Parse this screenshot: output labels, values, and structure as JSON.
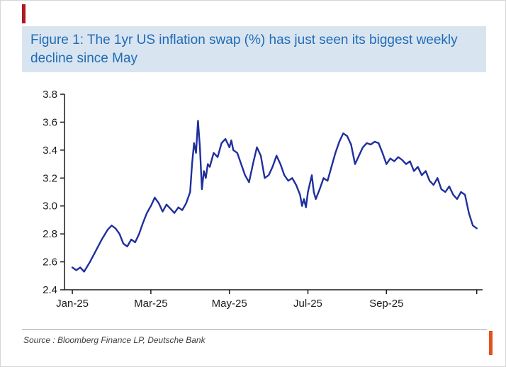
{
  "figure": {
    "title": "Figure 1: The 1yr US inflation swap (%) has just seen its biggest weekly decline since May",
    "source": "Source : Bloomberg Finance LP, Deutsche Bank"
  },
  "colors": {
    "title_text": "#1e6cb5",
    "title_bg": "#d9e4f1",
    "line": "#1f2f9e",
    "axis": "#1a1a1a",
    "accent_top": "#b01922",
    "accent_bottom": "#e4511e",
    "source_text": "#3f3f3f"
  },
  "chart_data": {
    "type": "line",
    "title": "Figure 1: The 1yr US inflation swap (%) has just seen its biggest weekly decline since May",
    "xlabel": "",
    "ylabel": "1yr US inflation swap (%)",
    "grid": false,
    "legend": false,
    "xlim": [
      -0.2,
      10.45
    ],
    "ylim": [
      2.4,
      3.8
    ],
    "x_unit": "months since Jan-25",
    "y_ticks": [
      2.4,
      2.6,
      2.8,
      3.0,
      3.2,
      3.4,
      3.6,
      3.8
    ],
    "x_ticks": [
      {
        "pos": 0,
        "label": "Jan-25"
      },
      {
        "pos": 2,
        "label": "Mar-25"
      },
      {
        "pos": 4,
        "label": "May-25"
      },
      {
        "pos": 6,
        "label": "Jul-25"
      },
      {
        "pos": 8,
        "label": "Sep-25"
      }
    ],
    "x_end_tick": 10.3,
    "series": [
      {
        "name": "1yr US inflation swap (%)",
        "x": [
          0.0,
          0.1,
          0.2,
          0.3,
          0.45,
          0.6,
          0.75,
          0.9,
          1.0,
          1.1,
          1.2,
          1.3,
          1.4,
          1.5,
          1.6,
          1.7,
          1.8,
          1.9,
          2.0,
          2.1,
          2.2,
          2.3,
          2.4,
          2.5,
          2.6,
          2.7,
          2.8,
          2.9,
          3.0,
          3.05,
          3.1,
          3.15,
          3.2,
          3.25,
          3.3,
          3.35,
          3.4,
          3.45,
          3.5,
          3.6,
          3.7,
          3.8,
          3.9,
          4.0,
          4.05,
          4.1,
          4.2,
          4.3,
          4.4,
          4.5,
          4.6,
          4.7,
          4.8,
          4.9,
          5.0,
          5.1,
          5.2,
          5.3,
          5.4,
          5.5,
          5.6,
          5.7,
          5.8,
          5.85,
          5.9,
          5.95,
          6.0,
          6.1,
          6.15,
          6.2,
          6.3,
          6.4,
          6.5,
          6.6,
          6.7,
          6.8,
          6.9,
          7.0,
          7.1,
          7.2,
          7.3,
          7.4,
          7.5,
          7.6,
          7.7,
          7.8,
          7.9,
          8.0,
          8.1,
          8.2,
          8.3,
          8.4,
          8.5,
          8.6,
          8.7,
          8.8,
          8.9,
          9.0,
          9.1,
          9.2,
          9.3,
          9.4,
          9.5,
          9.6,
          9.7,
          9.8,
          9.9,
          10.0,
          10.1,
          10.2,
          10.3
        ],
        "y": [
          2.56,
          2.54,
          2.56,
          2.53,
          2.6,
          2.68,
          2.76,
          2.83,
          2.86,
          2.84,
          2.8,
          2.73,
          2.71,
          2.76,
          2.74,
          2.8,
          2.88,
          2.95,
          3.0,
          3.06,
          3.02,
          2.96,
          3.01,
          2.98,
          2.95,
          2.99,
          2.97,
          3.02,
          3.1,
          3.3,
          3.45,
          3.38,
          3.61,
          3.42,
          3.12,
          3.25,
          3.2,
          3.3,
          3.28,
          3.38,
          3.35,
          3.45,
          3.48,
          3.42,
          3.47,
          3.4,
          3.38,
          3.3,
          3.22,
          3.17,
          3.3,
          3.42,
          3.36,
          3.2,
          3.22,
          3.28,
          3.36,
          3.3,
          3.22,
          3.18,
          3.2,
          3.15,
          3.08,
          3.0,
          3.05,
          2.99,
          3.1,
          3.22,
          3.1,
          3.05,
          3.12,
          3.2,
          3.18,
          3.28,
          3.38,
          3.46,
          3.52,
          3.5,
          3.44,
          3.3,
          3.36,
          3.42,
          3.45,
          3.44,
          3.46,
          3.45,
          3.38,
          3.3,
          3.34,
          3.32,
          3.35,
          3.33,
          3.3,
          3.32,
          3.25,
          3.28,
          3.22,
          3.25,
          3.18,
          3.15,
          3.2,
          3.12,
          3.1,
          3.14,
          3.08,
          3.05,
          3.1,
          3.08,
          2.95,
          2.86,
          2.84
        ]
      }
    ]
  }
}
